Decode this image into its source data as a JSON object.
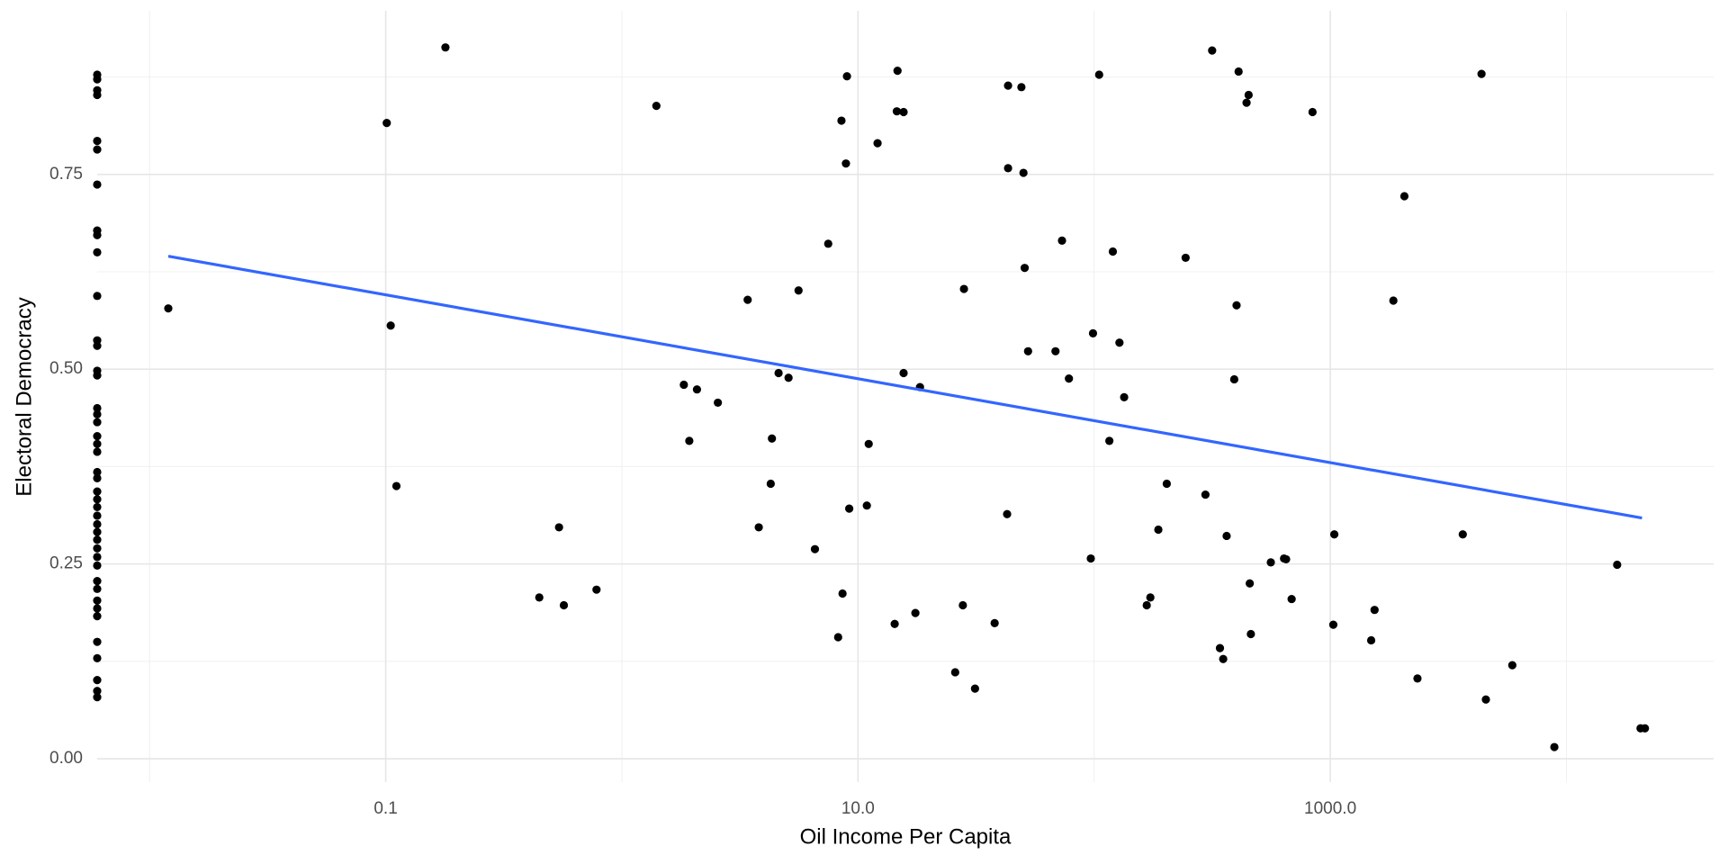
{
  "chart_data": {
    "type": "scatter",
    "x_label": "Oil Income Per Capita",
    "y_label": "Electoral Democracy",
    "x_log": true,
    "grid": true,
    "xlim": [
      0.006,
      42000
    ],
    "ylim": [
      -0.03,
      0.96
    ],
    "xticks": [
      {
        "value": 0.1,
        "label": "0.1"
      },
      {
        "value": 10,
        "label": "10.0"
      },
      {
        "value": 1000,
        "label": "1000.0"
      }
    ],
    "x_minor_ticks": [
      0.01,
      1,
      100,
      10000
    ],
    "yticks": [
      {
        "value": 0,
        "label": "0.00"
      },
      {
        "value": 0.25,
        "label": "0.25"
      },
      {
        "value": 0.5,
        "label": "0.50"
      },
      {
        "value": 0.75,
        "label": "0.75"
      }
    ],
    "y_minor_ticks": [
      0.125,
      0.375,
      0.625,
      0.875
    ],
    "color": "#000000",
    "x": [
      0,
      0,
      0,
      0,
      0,
      0,
      0,
      0,
      0,
      0,
      0,
      0,
      0,
      0,
      0,
      0,
      0,
      0,
      0,
      0,
      0,
      0,
      0,
      0,
      0,
      0,
      0,
      0,
      0,
      0,
      0,
      0,
      0,
      0,
      0,
      0,
      0,
      0,
      0,
      0,
      0,
      0,
      0,
      0.012,
      0.179,
      0.101,
      0.105,
      0.111,
      0.447,
      0.542,
      0.568,
      0.781,
      1.4,
      1.83,
      1.93,
      2.08,
      2.55,
      3.41,
      3.8,
      4.27,
      4.32,
      4.61,
      5.08,
      5.6,
      6.57,
      7.48,
      8.24,
      8.51,
      8.6,
      8.89,
      8.98,
      9.18,
      10.9,
      11.1,
      12.1,
      14.3,
      14.6,
      14.7,
      15.6,
      15.6,
      17.5,
      18.3,
      25.8,
      27.8,
      28.1,
      31.3,
      37.9,
      42.8,
      43.2,
      43.2,
      49.2,
      50.2,
      50.8,
      52.5,
      68.6,
      73.1,
      78.2,
      96.8,
      98.9,
      105,
      116,
      120,
      128,
      134,
      167,
      173,
      187,
      203,
      244,
      296,
      316,
      341,
      352,
      364,
      392,
      401,
      409,
      442,
      451,
      456,
      461,
      560,
      637,
      650,
      686,
      841,
      1030,
      1040,
      1490,
      1540,
      1850,
      2060,
      2340,
      3640,
      4370,
      4560,
      5900,
      8890,
      16400,
      20600,
      21500
    ],
    "values": [
      0.878,
      0.872,
      0.858,
      0.852,
      0.793,
      0.782,
      0.737,
      0.678,
      0.672,
      0.65,
      0.594,
      0.537,
      0.53,
      0.498,
      0.492,
      0.45,
      0.442,
      0.432,
      0.414,
      0.404,
      0.394,
      0.368,
      0.36,
      0.343,
      0.333,
      0.323,
      0.312,
      0.301,
      0.291,
      0.281,
      0.27,
      0.259,
      0.248,
      0.228,
      0.218,
      0.203,
      0.193,
      0.183,
      0.15,
      0.129,
      0.101,
      0.087,
      0.079,
      0.578,
      0.913,
      0.816,
      0.556,
      0.35,
      0.207,
      0.297,
      0.197,
      0.217,
      0.838,
      0.48,
      0.408,
      0.474,
      0.457,
      0.589,
      0.297,
      0.353,
      0.411,
      0.495,
      0.489,
      0.601,
      0.269,
      0.661,
      0.156,
      0.819,
      0.212,
      0.764,
      0.876,
      0.321,
      0.325,
      0.404,
      0.79,
      0.173,
      0.831,
      0.883,
      0.83,
      0.495,
      0.187,
      0.477,
      0.111,
      0.197,
      0.603,
      0.09,
      0.174,
      0.314,
      0.758,
      0.864,
      0.862,
      0.752,
      0.63,
      0.523,
      0.523,
      0.665,
      0.488,
      0.257,
      0.546,
      0.878,
      0.408,
      0.651,
      0.534,
      0.464,
      0.197,
      0.207,
      0.294,
      0.353,
      0.643,
      0.339,
      0.909,
      0.142,
      0.128,
      0.286,
      0.487,
      0.582,
      0.882,
      0.842,
      0.852,
      0.225,
      0.16,
      0.252,
      0.257,
      0.256,
      0.205,
      0.83,
      0.172,
      0.288,
      0.152,
      0.191,
      0.588,
      0.722,
      0.103,
      0.288,
      0.879,
      0.076,
      0.12,
      0.015,
      0.249,
      0.039,
      0.039
    ],
    "trend": {
      "color": "#3366ff",
      "x": [
        0.012,
        20900
      ],
      "values": [
        0.645,
        0.309
      ]
    }
  }
}
